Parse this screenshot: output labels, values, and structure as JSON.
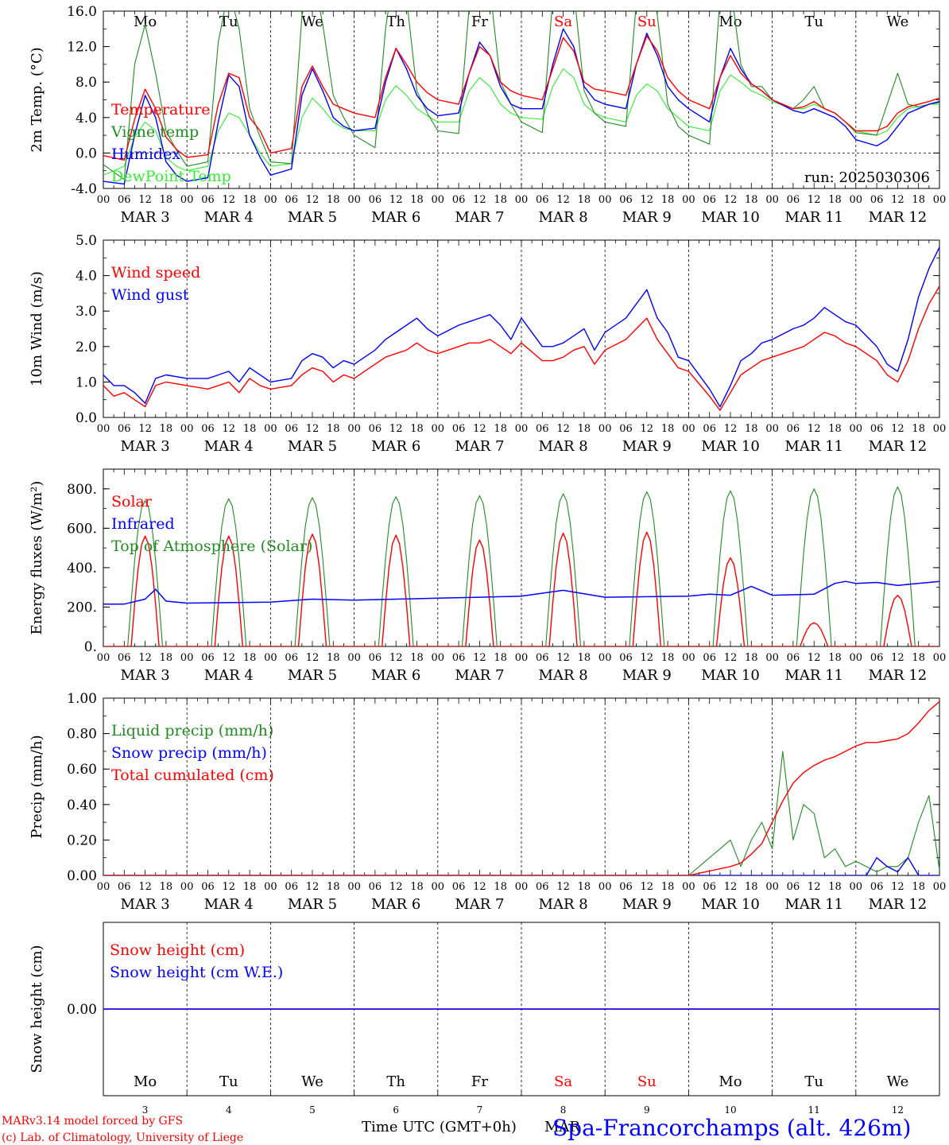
{
  "meta": {
    "run_label": "run: 2025030306",
    "credit_line1": "MARv3.14 model forced by GFS",
    "credit_line2": "(c) Lab. of Climatology, University of Liege",
    "x_axis_title": "Time UTC (GMT+0h)",
    "x_axis_month": "MAR",
    "station": "Spa-Francorchamps (alt. 426m)"
  },
  "colors": {
    "red": "#ff0000",
    "green": "#228b22",
    "blue": "#0000ff",
    "lightgreen": "#33ee33",
    "black": "#000000",
    "weekend": "#ff0000"
  },
  "time_axis": {
    "days": 10,
    "hour_ticks": [
      "00",
      "06",
      "12",
      "18"
    ],
    "end_tick": "00",
    "date_labels": [
      "MAR  3",
      "MAR  4",
      "MAR  5",
      "MAR  6",
      "MAR  7",
      "MAR  8",
      "MAR  9",
      "MAR 10",
      "MAR 11",
      "MAR 12"
    ],
    "weekdays": [
      "Mo",
      "Tu",
      "We",
      "Th",
      "Fr",
      "Sa",
      "Su",
      "Mo",
      "Tu",
      "We"
    ],
    "weekend_flags": [
      false,
      false,
      false,
      false,
      false,
      true,
      true,
      false,
      false,
      false
    ],
    "day_numbers": [
      "3",
      "4",
      "5",
      "6",
      "7",
      "8",
      "9",
      "10",
      "11",
      "12"
    ]
  },
  "chart_data": [
    {
      "type": "line",
      "ylabel": "2m Temp. (°C)",
      "ylim": [
        -4,
        16
      ],
      "y_ticks": [
        "-4.0",
        "0.0",
        "4.0",
        "8.0",
        "12.0",
        "16.0"
      ],
      "y_tick_values": [
        -4,
        0,
        4,
        8,
        12,
        16
      ],
      "zero_line": true,
      "legend_position": "left",
      "x_hours": [
        0,
        6,
        9,
        12,
        15,
        18,
        21,
        24,
        30,
        33,
        36,
        39,
        42,
        45,
        48,
        54,
        57,
        60,
        63,
        66,
        69,
        72,
        78,
        81,
        84,
        87,
        90,
        93,
        96,
        102,
        105,
        108,
        111,
        114,
        117,
        120,
        126,
        129,
        132,
        135,
        138,
        141,
        144,
        150,
        153,
        156,
        159,
        162,
        165,
        168,
        174,
        177,
        180,
        183,
        186,
        189,
        192,
        198,
        201,
        204,
        207,
        210,
        213,
        216,
        222,
        225,
        228,
        231,
        234,
        237,
        240
      ],
      "series": [
        {
          "name": "Temperature",
          "color": "red",
          "values": [
            -0.3,
            -0.8,
            3.8,
            7.2,
            5.0,
            1.8,
            0.4,
            -0.5,
            -0.2,
            5.5,
            9.0,
            8.5,
            4.0,
            2.5,
            0.0,
            0.5,
            7.5,
            9.8,
            7.5,
            5.5,
            5.0,
            4.5,
            4.0,
            8.5,
            11.8,
            10.0,
            8.0,
            6.8,
            6.0,
            5.5,
            9.0,
            12.0,
            11.0,
            8.0,
            7.0,
            6.5,
            6.0,
            9.5,
            13.0,
            11.5,
            8.0,
            7.2,
            7.0,
            6.5,
            10.0,
            13.2,
            11.5,
            8.5,
            7.0,
            6.0,
            5.0,
            8.5,
            11.0,
            9.0,
            7.8,
            7.0,
            6.0,
            5.0,
            5.2,
            5.8,
            5.0,
            4.5,
            3.5,
            2.5,
            2.5,
            3.0,
            4.5,
            5.2,
            5.5,
            5.8,
            6.2
          ]
        },
        {
          "name": "Vigne temp",
          "color": "green",
          "values": [
            -1.3,
            -3.0,
            10.0,
            14.5,
            9.0,
            2.5,
            0.3,
            -1.5,
            -1.0,
            12.5,
            18.5,
            14.0,
            5.0,
            1.8,
            -1.0,
            -1.2,
            15.5,
            20.5,
            14.5,
            6.5,
            4.0,
            2.0,
            0.6,
            14.0,
            22.0,
            17.5,
            7.0,
            4.5,
            2.5,
            2.2,
            16.5,
            23.5,
            18.5,
            8.0,
            5.5,
            3.5,
            2.3,
            17.5,
            24.0,
            18.5,
            7.0,
            4.5,
            3.5,
            3.0,
            17.0,
            23.0,
            15.5,
            5.5,
            3.0,
            2.0,
            1.0,
            17.5,
            19.0,
            10.0,
            7.5,
            7.5,
            6.0,
            5.0,
            6.0,
            7.5,
            5.0,
            4.5,
            3.5,
            2.3,
            2.0,
            5.5,
            9.0,
            5.5,
            5.2,
            5.5,
            5.7
          ]
        },
        {
          "name": "Humidex",
          "color": "blue",
          "values": [
            -3.2,
            -3.5,
            2.0,
            6.5,
            4.0,
            -1.0,
            -2.5,
            -3.2,
            -2.8,
            3.5,
            8.8,
            7.5,
            2.0,
            -0.5,
            -2.5,
            -1.8,
            6.5,
            9.5,
            7.0,
            4.0,
            3.0,
            2.5,
            2.8,
            8.0,
            11.8,
            9.5,
            6.5,
            5.0,
            4.2,
            4.5,
            9.0,
            12.5,
            11.0,
            7.5,
            5.5,
            5.0,
            5.0,
            10.0,
            14.0,
            12.0,
            7.5,
            6.0,
            5.5,
            5.0,
            10.0,
            13.5,
            11.0,
            7.5,
            6.0,
            5.0,
            3.5,
            8.5,
            11.8,
            9.5,
            7.8,
            7.0,
            6.0,
            4.8,
            4.5,
            5.0,
            4.5,
            4.0,
            3.0,
            1.5,
            0.8,
            1.5,
            3.0,
            4.5,
            5.0,
            5.5,
            5.8
          ]
        },
        {
          "name": "DewPoint Temp",
          "color": "lightgreen",
          "values": [
            -2.5,
            -1.5,
            1.8,
            3.5,
            2.5,
            -0.5,
            -1.5,
            -2.0,
            -1.5,
            2.5,
            4.5,
            4.0,
            2.0,
            0.0,
            -1.5,
            -1.2,
            4.0,
            6.2,
            5.0,
            3.5,
            2.8,
            2.5,
            2.5,
            6.0,
            7.6,
            6.5,
            5.0,
            4.2,
            3.5,
            3.5,
            7.0,
            8.5,
            7.5,
            5.5,
            4.5,
            4.0,
            3.8,
            7.5,
            9.5,
            8.5,
            5.5,
            4.5,
            4.0,
            3.5,
            6.5,
            7.8,
            7.0,
            5.0,
            4.0,
            3.0,
            2.5,
            7.0,
            8.8,
            8.0,
            7.0,
            6.5,
            5.8,
            5.0,
            5.0,
            5.5,
            5.0,
            4.5,
            3.5,
            2.5,
            2.0,
            2.5,
            4.0,
            5.0,
            5.2,
            5.5,
            5.5
          ]
        }
      ]
    },
    {
      "type": "line",
      "ylabel": "10m Wind (m/s)",
      "ylim": [
        0,
        5
      ],
      "y_ticks": [
        "0.0",
        "1.0",
        "2.0",
        "3.0",
        "4.0",
        "5.0"
      ],
      "y_tick_values": [
        0,
        1,
        2,
        3,
        4,
        5
      ],
      "legend_position": "left",
      "x_hours": [
        0,
        3,
        6,
        9,
        12,
        15,
        18,
        24,
        30,
        33,
        36,
        39,
        42,
        45,
        48,
        54,
        57,
        60,
        63,
        66,
        69,
        72,
        78,
        81,
        84,
        87,
        90,
        93,
        96,
        102,
        105,
        108,
        111,
        114,
        117,
        120,
        126,
        129,
        132,
        135,
        138,
        141,
        144,
        150,
        153,
        156,
        159,
        162,
        165,
        168,
        174,
        177,
        180,
        183,
        186,
        189,
        192,
        198,
        201,
        204,
        207,
        210,
        213,
        216,
        222,
        225,
        228,
        231,
        234,
        237,
        240
      ],
      "series": [
        {
          "name": "Wind speed",
          "color": "red",
          "values": [
            0.9,
            0.6,
            0.7,
            0.5,
            0.3,
            0.9,
            1.0,
            0.9,
            0.8,
            0.9,
            1.0,
            0.7,
            1.1,
            0.9,
            0.8,
            0.9,
            1.2,
            1.4,
            1.3,
            1.0,
            1.2,
            1.1,
            1.5,
            1.7,
            1.8,
            1.9,
            2.1,
            1.9,
            1.8,
            2.0,
            2.1,
            2.1,
            2.2,
            2.0,
            1.8,
            2.1,
            1.6,
            1.6,
            1.7,
            1.9,
            2.0,
            1.5,
            1.9,
            2.2,
            2.5,
            2.8,
            2.2,
            1.8,
            1.4,
            1.3,
            0.6,
            0.2,
            0.7,
            1.2,
            1.4,
            1.6,
            1.7,
            1.9,
            2.0,
            2.2,
            2.4,
            2.3,
            2.1,
            2.0,
            1.6,
            1.2,
            1.0,
            1.6,
            2.5,
            3.2,
            3.7
          ]
        },
        {
          "name": "Wind gust",
          "color": "blue",
          "values": [
            1.2,
            0.9,
            0.9,
            0.7,
            0.4,
            1.1,
            1.2,
            1.1,
            1.1,
            1.2,
            1.3,
            1.0,
            1.4,
            1.2,
            1.0,
            1.1,
            1.6,
            1.8,
            1.7,
            1.4,
            1.6,
            1.5,
            1.9,
            2.2,
            2.4,
            2.6,
            2.8,
            2.5,
            2.3,
            2.6,
            2.7,
            2.8,
            2.9,
            2.6,
            2.2,
            2.8,
            2.0,
            2.0,
            2.1,
            2.3,
            2.5,
            1.9,
            2.4,
            2.8,
            3.2,
            3.6,
            2.8,
            2.4,
            1.7,
            1.6,
            0.8,
            0.3,
            0.9,
            1.6,
            1.8,
            2.1,
            2.2,
            2.5,
            2.6,
            2.8,
            3.1,
            2.9,
            2.7,
            2.6,
            2.0,
            1.5,
            1.3,
            2.2,
            3.4,
            4.2,
            4.8
          ]
        }
      ]
    },
    {
      "type": "line",
      "ylabel": "Energy fluxes (W/m²)",
      "ylim": [
        0,
        900
      ],
      "y_ticks": [
        "0.",
        "200.",
        "400.",
        "600.",
        "800."
      ],
      "y_tick_values": [
        0,
        200,
        400,
        600,
        800
      ],
      "legend_position": "left",
      "solar_peaks": [
        560,
        560,
        570,
        565,
        540,
        575,
        580,
        450,
        120,
        260
      ],
      "toa_peaks": [
        740,
        750,
        755,
        760,
        765,
        775,
        785,
        790,
        800,
        810
      ],
      "infrared_hours": [
        0,
        6,
        12,
        15,
        18,
        24,
        48,
        60,
        72,
        96,
        108,
        120,
        132,
        144,
        168,
        174,
        180,
        186,
        192,
        204,
        210,
        213,
        216,
        222,
        228,
        240
      ],
      "series": [
        {
          "name": "Solar",
          "color": "red"
        },
        {
          "name": "Infrared",
          "color": "blue",
          "values": [
            215,
            215,
            240,
            290,
            230,
            220,
            225,
            240,
            235,
            245,
            250,
            255,
            285,
            250,
            255,
            265,
            260,
            305,
            260,
            265,
            320,
            330,
            320,
            325,
            310,
            330
          ]
        },
        {
          "name": "Top of Atmosphere (Solar)",
          "color": "green"
        }
      ]
    },
    {
      "type": "line",
      "ylabel": "Precip (mm/h)",
      "ylim": [
        0,
        1
      ],
      "y_ticks": [
        "0.00",
        "0.20",
        "0.40",
        "0.60",
        "0.80",
        "1.00"
      ],
      "y_tick_values": [
        0,
        0.2,
        0.4,
        0.6,
        0.8,
        1.0
      ],
      "legend_position": "left",
      "x_hours": [
        0,
        168,
        180,
        183,
        186,
        189,
        192,
        195,
        198,
        201,
        204,
        207,
        210,
        213,
        216,
        219,
        222,
        225,
        228,
        231,
        234,
        237,
        240
      ],
      "series": [
        {
          "name": "Liquid precip (mm/h)",
          "color": "green",
          "values": [
            0,
            0,
            0.2,
            0.05,
            0.2,
            0.3,
            0.15,
            0.7,
            0.2,
            0.4,
            0.35,
            0.1,
            0.15,
            0.05,
            0.08,
            0.05,
            0.02,
            0.05,
            0.05,
            0.1,
            0.3,
            0.45,
            0.03
          ]
        },
        {
          "name": "Snow precip (mm/h)",
          "color": "blue",
          "values": [
            0,
            0,
            0,
            0,
            0,
            0,
            0,
            0,
            0,
            0,
            0,
            0,
            0,
            0,
            0,
            0,
            0.1,
            0.05,
            0.02,
            0.1,
            0,
            0,
            0
          ]
        },
        {
          "name": "Total cumulated (cm)",
          "color": "red",
          "values": [
            0,
            0,
            0.05,
            0.07,
            0.12,
            0.18,
            0.3,
            0.42,
            0.52,
            0.58,
            0.62,
            0.65,
            0.67,
            0.7,
            0.73,
            0.75,
            0.75,
            0.76,
            0.77,
            0.8,
            0.86,
            0.93,
            0.98
          ]
        }
      ]
    },
    {
      "type": "line",
      "ylabel": "Snow height (cm)",
      "ylim": [
        -1,
        1
      ],
      "y_ticks": [
        "0.00"
      ],
      "y_tick_values": [
        0
      ],
      "legend_position": "left",
      "x_hours": [
        0,
        240
      ],
      "series": [
        {
          "name": "Snow height (cm)",
          "color": "red",
          "values": [
            0,
            0
          ]
        },
        {
          "name": "Snow height (cm W.E.)",
          "color": "blue",
          "values": [
            0,
            0
          ]
        }
      ]
    }
  ]
}
